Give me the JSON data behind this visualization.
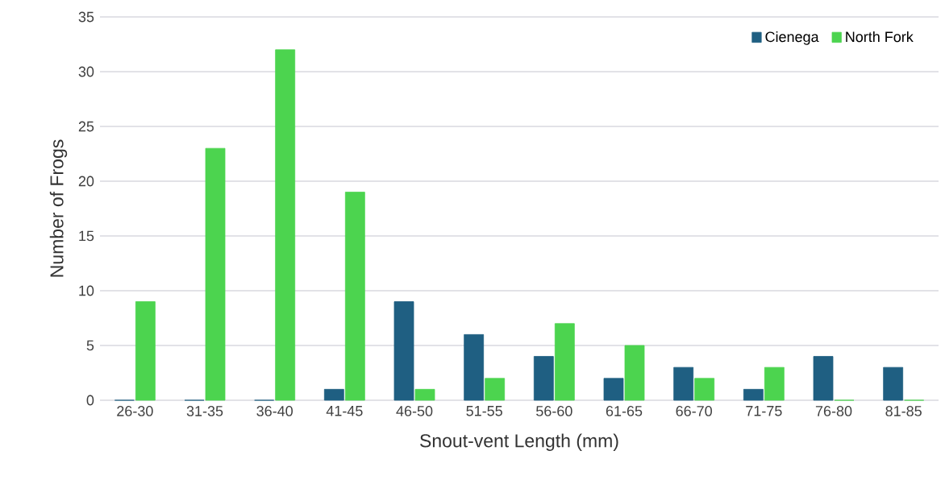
{
  "chart_data": {
    "type": "bar",
    "xlabel": "Snout-vent Length (mm)",
    "ylabel": "Number of Frogs",
    "categories": [
      "26-30",
      "31-35",
      "36-40",
      "41-45",
      "46-50",
      "51-55",
      "56-60",
      "61-65",
      "66-70",
      "71-75",
      "76-80",
      "81-85"
    ],
    "series": [
      {
        "name": "Cienega",
        "color": "#1f5f82",
        "values": [
          0,
          0,
          0,
          1,
          9,
          6,
          4,
          2,
          3,
          1,
          4,
          3
        ]
      },
      {
        "name": "North Fork",
        "color": "#4cd44f",
        "values": [
          9,
          23,
          32,
          19,
          1,
          2,
          7,
          5,
          2,
          3,
          0,
          0
        ]
      }
    ],
    "ylim": [
      0,
      35
    ],
    "yticks": [
      0,
      5,
      10,
      15,
      20,
      25,
      30,
      35
    ],
    "grid": "y",
    "legend": "top right"
  }
}
